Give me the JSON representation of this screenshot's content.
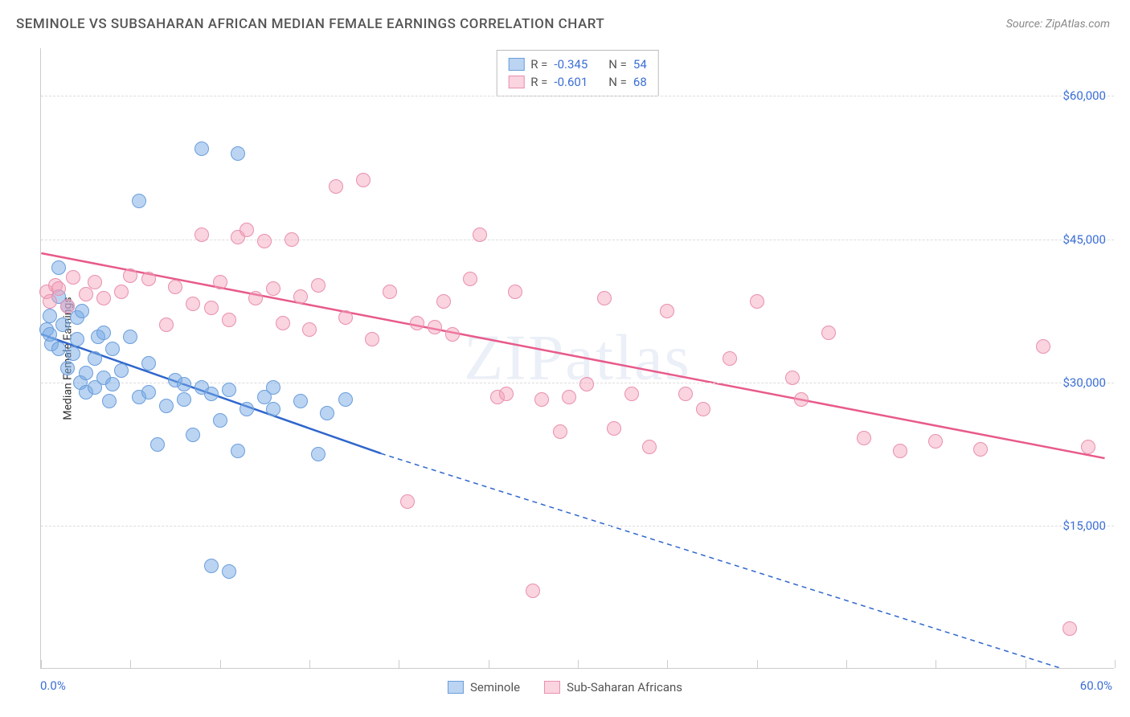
{
  "title": "SEMINOLE VS SUBSAHARAN AFRICAN MEDIAN FEMALE EARNINGS CORRELATION CHART",
  "source": "Source: ZipAtlas.com",
  "ylabel": "Median Female Earnings",
  "watermark": "ZIPatlas",
  "xaxis": {
    "min": 0.0,
    "max": 60.0,
    "labels": [
      {
        "value": 0.0,
        "text": "0.0%"
      },
      {
        "value": 60.0,
        "text": "60.0%"
      }
    ],
    "ticks": [
      0,
      5,
      10,
      15,
      20,
      25,
      30,
      35,
      40,
      45,
      50,
      55,
      60
    ]
  },
  "yaxis": {
    "min": 0,
    "max": 65000,
    "labels": [
      {
        "value": 15000,
        "text": "$15,000"
      },
      {
        "value": 30000,
        "text": "$30,000"
      },
      {
        "value": 45000,
        "text": "$45,000"
      },
      {
        "value": 60000,
        "text": "$60,000"
      }
    ],
    "label_color": "#3b6fd6",
    "label_fontsize": 15
  },
  "series": [
    {
      "name": "Seminole",
      "fill": "rgba(120,170,230,0.5)",
      "stroke": "#6a9edb",
      "stroke_width": 1.5,
      "marker_radius": 9,
      "trend": {
        "x1": 0.0,
        "y1": 35000,
        "x2_solid": 19.0,
        "y2_solid": 22500,
        "x2_dash": 57.0,
        "y2_dash": 0,
        "color": "#2f66cc",
        "width": 2.5
      },
      "stats": {
        "R_label": "R =",
        "R": "-0.345",
        "N_label": "N =",
        "N": "54"
      },
      "points": [
        {
          "x": 0.5,
          "y": 37000
        },
        {
          "x": 0.3,
          "y": 35500
        },
        {
          "x": 0.6,
          "y": 34000
        },
        {
          "x": 0.5,
          "y": 35000
        },
        {
          "x": 1.0,
          "y": 39000
        },
        {
          "x": 1.0,
          "y": 33500
        },
        {
          "x": 1.2,
          "y": 36000
        },
        {
          "x": 1.0,
          "y": 42000
        },
        {
          "x": 1.5,
          "y": 38000
        },
        {
          "x": 1.8,
          "y": 33000
        },
        {
          "x": 2.0,
          "y": 36800
        },
        {
          "x": 1.5,
          "y": 31500
        },
        {
          "x": 2.0,
          "y": 34500
        },
        {
          "x": 2.2,
          "y": 30000
        },
        {
          "x": 2.3,
          "y": 37500
        },
        {
          "x": 2.5,
          "y": 31000
        },
        {
          "x": 2.5,
          "y": 29000
        },
        {
          "x": 3.0,
          "y": 32500
        },
        {
          "x": 3.0,
          "y": 29500
        },
        {
          "x": 3.2,
          "y": 34800
        },
        {
          "x": 3.5,
          "y": 35200
        },
        {
          "x": 3.5,
          "y": 30500
        },
        {
          "x": 3.8,
          "y": 28000
        },
        {
          "x": 4.0,
          "y": 33500
        },
        {
          "x": 4.0,
          "y": 29800
        },
        {
          "x": 4.5,
          "y": 31200
        },
        {
          "x": 5.0,
          "y": 34800
        },
        {
          "x": 5.5,
          "y": 49000
        },
        {
          "x": 5.5,
          "y": 28500
        },
        {
          "x": 6.0,
          "y": 29000
        },
        {
          "x": 6.0,
          "y": 32000
        },
        {
          "x": 6.5,
          "y": 23500
        },
        {
          "x": 7.0,
          "y": 27500
        },
        {
          "x": 7.5,
          "y": 30200
        },
        {
          "x": 8.0,
          "y": 29800
        },
        {
          "x": 8.0,
          "y": 28200
        },
        {
          "x": 8.5,
          "y": 24500
        },
        {
          "x": 9.0,
          "y": 29500
        },
        {
          "x": 9.0,
          "y": 54500
        },
        {
          "x": 9.5,
          "y": 28800
        },
        {
          "x": 9.5,
          "y": 10800
        },
        {
          "x": 10.0,
          "y": 26000
        },
        {
          "x": 10.5,
          "y": 29200
        },
        {
          "x": 10.5,
          "y": 10200
        },
        {
          "x": 11.0,
          "y": 54000
        },
        {
          "x": 11.0,
          "y": 22800
        },
        {
          "x": 11.5,
          "y": 27200
        },
        {
          "x": 12.5,
          "y": 28500
        },
        {
          "x": 13.0,
          "y": 29500
        },
        {
          "x": 13.0,
          "y": 27200
        },
        {
          "x": 14.5,
          "y": 28000
        },
        {
          "x": 15.5,
          "y": 22500
        },
        {
          "x": 16.0,
          "y": 26800
        },
        {
          "x": 17.0,
          "y": 28200
        }
      ]
    },
    {
      "name": "Sub-Saharan Africans",
      "fill": "rgba(245,160,185,0.45)",
      "stroke": "#e98fae",
      "stroke_width": 1.5,
      "marker_radius": 9,
      "trend": {
        "x1": 0.0,
        "y1": 43500,
        "x2_solid": 59.5,
        "y2_solid": 22000,
        "x2_dash": 59.5,
        "y2_dash": 22000,
        "color": "#e85a8a",
        "width": 2.5
      },
      "stats": {
        "R_label": "R =",
        "R": "-0.601",
        "N_label": "N =",
        "N": "68"
      },
      "points": [
        {
          "x": 0.3,
          "y": 39500
        },
        {
          "x": 0.5,
          "y": 38500
        },
        {
          "x": 0.8,
          "y": 40200
        },
        {
          "x": 1.0,
          "y": 39800
        },
        {
          "x": 1.5,
          "y": 38000
        },
        {
          "x": 1.8,
          "y": 41000
        },
        {
          "x": 2.5,
          "y": 39200
        },
        {
          "x": 3.0,
          "y": 40500
        },
        {
          "x": 3.5,
          "y": 38800
        },
        {
          "x": 4.5,
          "y": 39500
        },
        {
          "x": 5.0,
          "y": 41200
        },
        {
          "x": 6.0,
          "y": 40800
        },
        {
          "x": 7.0,
          "y": 36000
        },
        {
          "x": 7.5,
          "y": 40000
        },
        {
          "x": 8.5,
          "y": 38200
        },
        {
          "x": 9.0,
          "y": 45500
        },
        {
          "x": 9.5,
          "y": 37800
        },
        {
          "x": 10.0,
          "y": 40500
        },
        {
          "x": 10.5,
          "y": 36500
        },
        {
          "x": 11.0,
          "y": 45200
        },
        {
          "x": 11.5,
          "y": 46000
        },
        {
          "x": 12.0,
          "y": 38800
        },
        {
          "x": 12.5,
          "y": 44800
        },
        {
          "x": 13.0,
          "y": 39800
        },
        {
          "x": 13.5,
          "y": 36200
        },
        {
          "x": 14.0,
          "y": 45000
        },
        {
          "x": 14.5,
          "y": 39000
        },
        {
          "x": 15.0,
          "y": 35500
        },
        {
          "x": 15.5,
          "y": 40200
        },
        {
          "x": 16.5,
          "y": 50500
        },
        {
          "x": 17.0,
          "y": 36800
        },
        {
          "x": 18.0,
          "y": 51200
        },
        {
          "x": 18.5,
          "y": 34500
        },
        {
          "x": 19.5,
          "y": 39500
        },
        {
          "x": 20.5,
          "y": 17500
        },
        {
          "x": 21.0,
          "y": 36200
        },
        {
          "x": 22.0,
          "y": 35800
        },
        {
          "x": 22.5,
          "y": 38500
        },
        {
          "x": 23.0,
          "y": 35000
        },
        {
          "x": 24.0,
          "y": 40800
        },
        {
          "x": 24.5,
          "y": 45500
        },
        {
          "x": 25.5,
          "y": 28500
        },
        {
          "x": 26.0,
          "y": 28800
        },
        {
          "x": 26.5,
          "y": 39500
        },
        {
          "x": 27.5,
          "y": 8200
        },
        {
          "x": 28.0,
          "y": 28200
        },
        {
          "x": 29.0,
          "y": 24800
        },
        {
          "x": 29.5,
          "y": 28500
        },
        {
          "x": 30.5,
          "y": 29800
        },
        {
          "x": 31.5,
          "y": 38800
        },
        {
          "x": 32.0,
          "y": 25200
        },
        {
          "x": 33.0,
          "y": 28800
        },
        {
          "x": 34.0,
          "y": 23200
        },
        {
          "x": 35.0,
          "y": 37500
        },
        {
          "x": 36.0,
          "y": 28800
        },
        {
          "x": 37.0,
          "y": 27200
        },
        {
          "x": 38.5,
          "y": 32500
        },
        {
          "x": 40.0,
          "y": 38500
        },
        {
          "x": 42.0,
          "y": 30500
        },
        {
          "x": 42.5,
          "y": 28200
        },
        {
          "x": 44.0,
          "y": 35200
        },
        {
          "x": 46.0,
          "y": 24200
        },
        {
          "x": 48.0,
          "y": 22800
        },
        {
          "x": 50.0,
          "y": 23800
        },
        {
          "x": 52.5,
          "y": 23000
        },
        {
          "x": 56.0,
          "y": 33800
        },
        {
          "x": 57.5,
          "y": 4200
        },
        {
          "x": 58.5,
          "y": 23200
        }
      ]
    }
  ],
  "colors": {
    "title": "#555555",
    "axis_text": "#3b6fd6",
    "grid": "#dddddd",
    "border": "#cccccc"
  }
}
